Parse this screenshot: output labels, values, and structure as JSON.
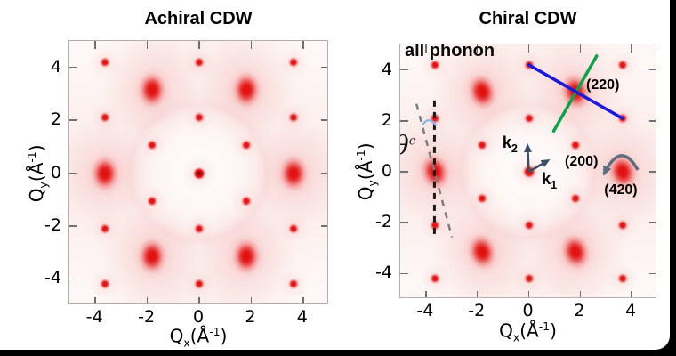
{
  "figure": {
    "border_color": "#000000",
    "sheet_color": "#ffffff",
    "frame_color": "#b6adad",
    "tick_color": "#6f6f6f",
    "heat_background": "#fbeeec",
    "heat_red": "#e41616"
  },
  "chart_data": [
    {
      "type": "heatmap",
      "panel": "left",
      "title": "Achiral CDW",
      "xlabel": {
        "sym": "Q",
        "sub": "x",
        "unit_pre": "(Å",
        "sup": "-1",
        "unit_post": ")"
      },
      "ylabel": {
        "sym": "Q",
        "sub": "y",
        "unit_pre": "(Å",
        "sup": "-1",
        "unit_post": ")"
      },
      "xlim": [
        -5,
        5
      ],
      "ylim": [
        -5,
        5
      ],
      "xticks": [
        -4,
        -2,
        0,
        2,
        4
      ],
      "yticks": [
        -4,
        -2,
        0,
        2,
        4
      ],
      "center_peak": {
        "pos": [
          0,
          0
        ],
        "dark_core": true
      },
      "bragg_peaks": [
        [
          3.64,
          0
        ],
        [
          1.82,
          3.15
        ],
        [
          -1.82,
          3.15
        ],
        [
          -3.64,
          0
        ],
        [
          -1.82,
          -3.15
        ],
        [
          1.82,
          -3.15
        ]
      ],
      "satellite_peaks": [
        [
          1.82,
          1.05
        ],
        [
          -1.82,
          1.05
        ],
        [
          1.82,
          -1.05
        ],
        [
          -1.82,
          -1.05
        ],
        [
          0,
          2.1
        ],
        [
          0,
          -2.1
        ],
        [
          3.64,
          2.1
        ],
        [
          -3.64,
          2.1
        ],
        [
          3.64,
          -2.1
        ],
        [
          -3.64,
          -2.1
        ],
        [
          0,
          4.2
        ],
        [
          0,
          -4.2
        ],
        [
          3.64,
          4.2
        ],
        [
          -3.64,
          4.2
        ],
        [
          3.64,
          -4.2
        ],
        [
          -3.64,
          -4.2
        ]
      ],
      "peak_tilt_deg": 0,
      "annotations": null
    },
    {
      "type": "heatmap",
      "panel": "right",
      "title": "Chiral CDW",
      "xlabel": {
        "sym": "Q",
        "sub": "x",
        "unit_pre": "(Å",
        "sup": "-1",
        "unit_post": ")"
      },
      "ylabel": {
        "sym": "Q",
        "sub": "y",
        "unit_pre": "(Å",
        "sup": "-1",
        "unit_post": ")"
      },
      "xlim": [
        -5,
        5
      ],
      "ylim": [
        -5,
        5
      ],
      "xticks": [
        -4,
        -2,
        0,
        2,
        4
      ],
      "yticks": [
        -4,
        -2,
        0,
        2,
        4
      ],
      "center_peak": {
        "pos": [
          0,
          0
        ],
        "dark_core": false
      },
      "bragg_peaks": [
        [
          3.64,
          0
        ],
        [
          1.82,
          3.15
        ],
        [
          -1.82,
          3.15
        ],
        [
          -3.64,
          0
        ],
        [
          -1.82,
          -3.15
        ],
        [
          1.82,
          -3.15
        ]
      ],
      "satellite_peaks": [
        [
          1.82,
          1.05
        ],
        [
          -1.82,
          1.05
        ],
        [
          1.82,
          -1.05
        ],
        [
          -1.82,
          -1.05
        ],
        [
          0,
          2.1
        ],
        [
          0,
          -2.1
        ],
        [
          3.64,
          2.1
        ],
        [
          -3.64,
          2.1
        ],
        [
          3.64,
          -2.1
        ],
        [
          -3.64,
          -2.1
        ],
        [
          0,
          4.2
        ],
        [
          0,
          -4.2
        ],
        [
          3.64,
          4.2
        ],
        [
          -3.64,
          4.2
        ],
        [
          3.64,
          -4.2
        ],
        [
          -3.64,
          -4.2
        ]
      ],
      "peak_tilt_deg": -15,
      "annotations": {
        "corner_text": "all phonon",
        "lines": [
          {
            "name": "blue-scan-line",
            "from": [
              0,
              4.2
            ],
            "to": [
              3.64,
              2.1
            ],
            "color": "#1b18e0",
            "width": 3.5
          },
          {
            "name": "green-scan-line",
            "from": [
              0.97,
              1.6
            ],
            "to": [
              2.64,
              4.55
            ],
            "color": "#0ba24a",
            "width": 3.5
          }
        ],
        "dashed_lines": [
          {
            "name": "achiral-reference-line",
            "from": [
              -3.67,
              2.8
            ],
            "to": [
              -3.67,
              -2.45
            ],
            "color": "#1a1a1a",
            "width": 3,
            "dash": "7 6"
          },
          {
            "name": "chiral-tilt-line",
            "from": [
              -4.37,
              2.67
            ],
            "to": [
              -2.99,
              -2.57
            ],
            "color": "#7d7d7d",
            "width": 2.5,
            "dash": "7 7"
          }
        ],
        "angle_arc": {
          "from": [
            -4.13,
            1.84
          ],
          "ctrl": [
            -3.89,
            2.22
          ],
          "to": [
            -3.61,
            1.81
          ],
          "color": "#86b5e8"
        },
        "theta_label": {
          "sym": "θ",
          "sup": "c",
          "at": [
            -4.83,
            1.05
          ]
        },
        "vector_color": "#3c4e66",
        "vectors": [
          {
            "name": "k2-vector",
            "label_sym": "k",
            "label_sub": "2",
            "from": [
              0,
              0
            ],
            "to": [
              -0.05,
              1.12
            ],
            "label_at": [
              -0.73,
              1.1
            ]
          },
          {
            "name": "k1-vector",
            "label_sym": "k",
            "label_sub": "1",
            "from": [
              0,
              0
            ],
            "to": [
              0.83,
              0.49
            ],
            "label_at": [
              0.8,
              -0.36
            ]
          }
        ],
        "peak_labels": [
          {
            "text": "(220)",
            "at": [
              2.88,
              3.4
            ]
          },
          {
            "text": "(200)",
            "at": [
              2.05,
              0.38
            ]
          },
          {
            "text": "(420)",
            "at": [
              3.58,
              -0.73
            ]
          }
        ],
        "rotation_arrow": {
          "from": [
            2.92,
            -0.1
          ],
          "ctrl": [
            3.58,
            1.28
          ],
          "to": [
            4.24,
            0.07
          ],
          "color": "#5d6e82",
          "width": 3.5
        }
      }
    }
  ]
}
